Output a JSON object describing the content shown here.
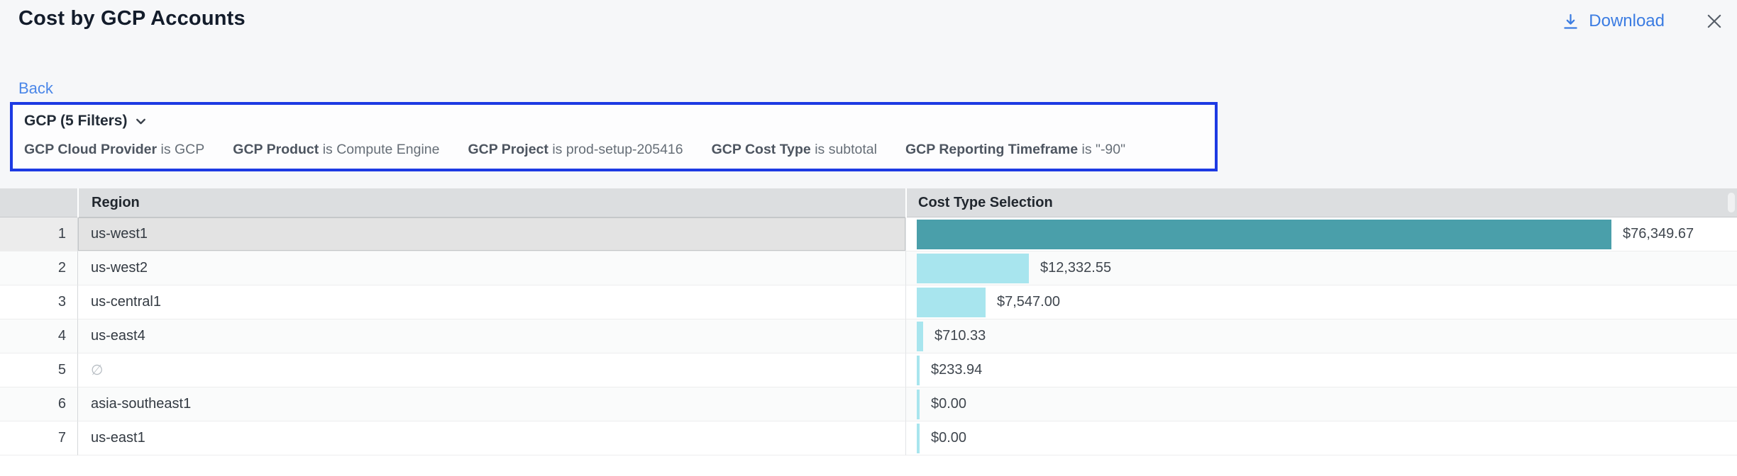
{
  "header": {
    "title": "Cost by GCP Accounts",
    "download_label": "Download"
  },
  "nav": {
    "back_label": "Back"
  },
  "filters": {
    "summary": "GCP (5 Filters)",
    "items": [
      {
        "field": "GCP Cloud Provider",
        "condition": "is GCP"
      },
      {
        "field": "GCP Product",
        "condition": "is Compute Engine"
      },
      {
        "field": "GCP Project",
        "condition": "is prod-setup-205416"
      },
      {
        "field": "GCP Cost Type",
        "condition": "is subtotal"
      },
      {
        "field": "GCP Reporting Timeframe",
        "condition": "is \"-90\""
      }
    ]
  },
  "table": {
    "columns": [
      "Region",
      "Cost Type Selection"
    ],
    "rows": [
      {
        "index": "1",
        "region": "us-west1",
        "value": "$76,349.67",
        "amount": 76349.67,
        "selected": true
      },
      {
        "index": "2",
        "region": "us-west2",
        "value": "$12,332.55",
        "amount": 12332.55
      },
      {
        "index": "3",
        "region": "us-central1",
        "value": "$7,547.00",
        "amount": 7547.0
      },
      {
        "index": "4",
        "region": "us-east4",
        "value": "$710.33",
        "amount": 710.33
      },
      {
        "index": "5",
        "region": "∅",
        "value": "$233.94",
        "amount": 233.94,
        "empty": true
      },
      {
        "index": "6",
        "region": "asia-southeast1",
        "value": "$0.00",
        "amount": 0
      },
      {
        "index": "7",
        "region": "us-east1",
        "value": "$0.00",
        "amount": 0
      }
    ]
  },
  "chart_data": {
    "type": "bar",
    "orientation": "horizontal",
    "title": "Cost by GCP Accounts",
    "categories": [
      "us-west1",
      "us-west2",
      "us-central1",
      "us-east4",
      "∅",
      "asia-southeast1",
      "us-east1"
    ],
    "values": [
      76349.67,
      12332.55,
      7547.0,
      710.33,
      233.94,
      0.0,
      0.0
    ],
    "value_labels": [
      "$76,349.67",
      "$12,332.55",
      "$7,547.00",
      "$710.33",
      "$233.94",
      "$0.00",
      "$0.00"
    ],
    "series_label": "Cost Type Selection",
    "xlim": [
      0,
      76349.67
    ],
    "grid": false,
    "legend": false
  },
  "colors": {
    "accent_border": "#1d3ae3",
    "link_blue": "#3b7ce2",
    "bar_selected": "#4a9faa",
    "bar_default": "#a8e5ee"
  }
}
